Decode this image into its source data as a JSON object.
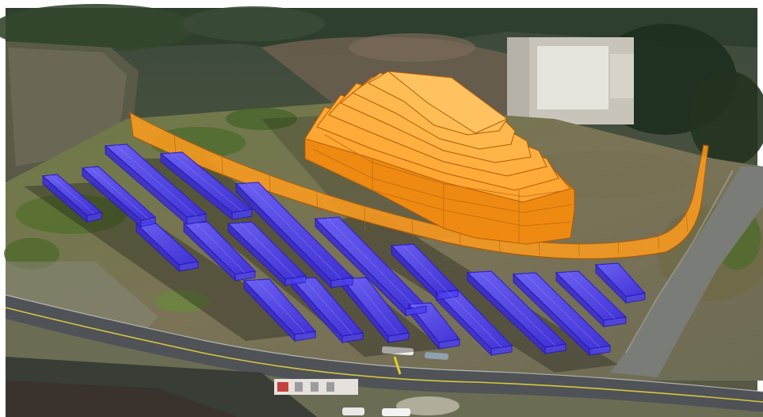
{
  "scene": {
    "description_kind": "3d-site-model-over-aerial-imagery",
    "colors": {
      "solar_array_fill": "#4a3cff",
      "solar_array_stroke": "#2a1fd6",
      "berm_fill": "#ff9a16",
      "berm_stroke": "#b85f00",
      "fence_fill": "#ff9d1e",
      "road": "#55585c",
      "road_line": "#d8c640",
      "terrain_base": "#6e6a48",
      "vegetation": "#3d5a2a"
    },
    "objects": {
      "solar_array_rows": 9,
      "solar_array_blocks": 17,
      "berm_tiers": 7,
      "fence_segments": 1,
      "vehicles_visible": 4
    }
  }
}
